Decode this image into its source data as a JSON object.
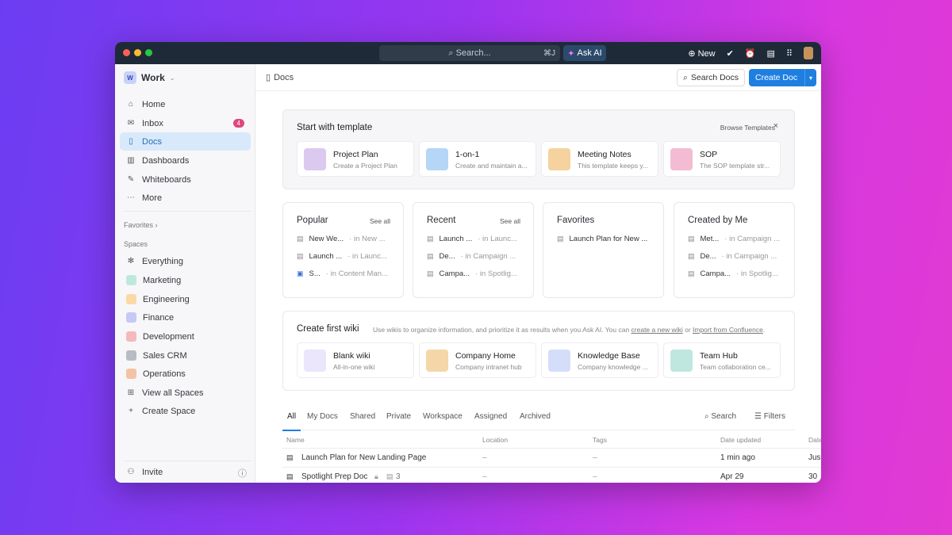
{
  "titlebar": {
    "search_placeholder": "Search...",
    "shortcut": "⌘J",
    "ask_ai": "Ask AI",
    "new_label": "New"
  },
  "sidebar": {
    "workspace": {
      "initial": "W",
      "name": "Work"
    },
    "items": [
      {
        "label": "Home",
        "icon": "home-icon"
      },
      {
        "label": "Inbox",
        "icon": "inbox-icon",
        "badge": "4"
      },
      {
        "label": "Docs",
        "icon": "doc-icon",
        "active": true
      },
      {
        "label": "Dashboards",
        "icon": "dashboard-icon"
      },
      {
        "label": "Whiteboards",
        "icon": "whiteboard-icon"
      },
      {
        "label": "More",
        "icon": "more-icon"
      }
    ],
    "favorites_label": "Favorites",
    "spaces_label": "Spaces",
    "spaces": [
      {
        "label": "Everything",
        "color": "#ffffff"
      },
      {
        "label": "Marketing",
        "color": "#bfe8dc"
      },
      {
        "label": "Engineering",
        "color": "#fbd9a6"
      },
      {
        "label": "Finance",
        "color": "#c5c9f5"
      },
      {
        "label": "Development",
        "color": "#f5b9bd"
      },
      {
        "label": "Sales CRM",
        "color": "#b9bcc2"
      },
      {
        "label": "Operations",
        "color": "#f3c3a6"
      }
    ],
    "view_all": "View all Spaces",
    "create_space": "Create Space",
    "invite": "Invite"
  },
  "header": {
    "breadcrumb": "Docs",
    "search_docs": "Search Docs",
    "create_doc": "Create Doc"
  },
  "templates": {
    "title": "Start with template",
    "browse": "Browse Templates",
    "items": [
      {
        "title": "Project Plan",
        "desc": "Create a Project Plan",
        "color": "#dcc9f0"
      },
      {
        "title": "1-on-1",
        "desc": "Create and maintain a...",
        "color": "#b6d6f7"
      },
      {
        "title": "Meeting Notes",
        "desc": "This template keeps y...",
        "color": "#f5d29e"
      },
      {
        "title": "SOP",
        "desc": "The SOP template str...",
        "color": "#f4bcd3"
      }
    ]
  },
  "columns": [
    {
      "title": "Popular",
      "see_all": "See all",
      "rows": [
        {
          "name": "New We...",
          "loc": "· in New ..."
        },
        {
          "name": "Launch ...",
          "loc": "· in Launc..."
        },
        {
          "name": "S...",
          "loc": "· in Content Man..."
        }
      ]
    },
    {
      "title": "Recent",
      "see_all": "See all",
      "rows": [
        {
          "name": "Launch ...",
          "loc": "· in Launc..."
        },
        {
          "name": "De...",
          "loc": "· in Campaign ..."
        },
        {
          "name": "Campa...",
          "loc": "· in Spotlig..."
        }
      ]
    },
    {
      "title": "Favorites",
      "rows": [
        {
          "name": "Launch Plan for New ...",
          "loc": ""
        }
      ]
    },
    {
      "title": "Created by Me",
      "rows": [
        {
          "name": "Met...",
          "loc": "· in Campaign ..."
        },
        {
          "name": "De...",
          "loc": "· in Campaign ..."
        },
        {
          "name": "Campa...",
          "loc": "· in Spotlig..."
        }
      ]
    }
  ],
  "wiki": {
    "title": "Create first wiki",
    "desc": "Use wikis to organize information, and prioritize it as results when you Ask AI. You can ",
    "link1": "create a new wiki",
    "or": " or ",
    "link2": "Import from Confluence",
    "end": ".",
    "items": [
      {
        "title": "Blank wiki",
        "desc": "All-in-one wiki",
        "color": "#ebe6fb"
      },
      {
        "title": "Company Home",
        "desc": "Company intranet hub",
        "color": "#f5d6a8"
      },
      {
        "title": "Knowledge Base",
        "desc": "Company knowledge ...",
        "color": "#d5def8"
      },
      {
        "title": "Team Hub",
        "desc": "Team collaboration ce...",
        "color": "#bfe6df"
      }
    ]
  },
  "tabs": [
    "All",
    "My Docs",
    "Shared",
    "Private",
    "Workspace",
    "Assigned",
    "Archived"
  ],
  "tab_actions": {
    "search": "Search",
    "filters": "Filters"
  },
  "table": {
    "columns": [
      "Name",
      "Location",
      "Tags",
      "Date updated",
      "Date"
    ],
    "rows": [
      {
        "name": "Launch Plan for New Landing Page",
        "location": "–",
        "tags": "–",
        "updated": "1 min ago",
        "date": "Jus"
      },
      {
        "name": "Spotlight Prep Doc",
        "pages": "3",
        "location": "–",
        "tags": "–",
        "updated": "Apr 29",
        "date": "30"
      }
    ]
  }
}
